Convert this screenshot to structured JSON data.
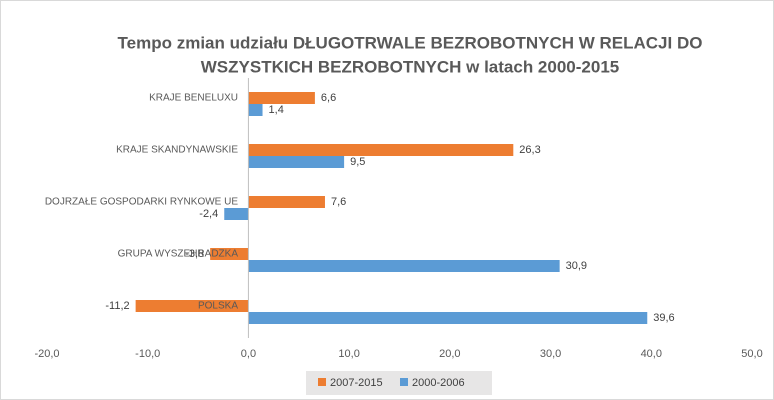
{
  "chart_data": {
    "type": "hbar",
    "title": [
      "Tempo zmian udziału DŁUGOTRWALE BEZROBOTNYCH W RELACJI DO",
      "WSZYSTKICH BEZROBOTNYCH w latach 2000-2015"
    ],
    "categories": [
      "KRAJE BENELUXU",
      "KRAJE SKANDYNAWSKIE",
      "DOJRZAŁE GOSPODARKI RYNKOWE UE",
      "GRUPA WYSZEHRADZKA",
      "POLSKA"
    ],
    "series": [
      {
        "name": "2007-2015",
        "color": "#ed7d31",
        "values": [
          6.6,
          26.3,
          7.6,
          -3.8,
          -11.2
        ],
        "value_labels": [
          "6,6",
          "26,3",
          "7,6",
          "-3,8",
          "-11,2"
        ]
      },
      {
        "name": "2000-2006",
        "color": "#5b9bd5",
        "values": [
          1.4,
          9.5,
          -2.4,
          30.9,
          39.6
        ],
        "value_labels": [
          "1,4",
          "9,5",
          "-2,4",
          "30,9",
          "39,6"
        ]
      }
    ],
    "xlim": [
      -20,
      50
    ],
    "xticks": [
      {
        "value": -20,
        "label": "-20,0"
      },
      {
        "value": -10,
        "label": "-10,0"
      },
      {
        "value": 0,
        "label": "0,0"
      },
      {
        "value": 10,
        "label": "10,0"
      },
      {
        "value": 20,
        "label": "20,0"
      },
      {
        "value": 30,
        "label": "30,0"
      },
      {
        "value": 40,
        "label": "40,0"
      },
      {
        "value": 50,
        "label": "50,0"
      }
    ],
    "legend": "bottom"
  }
}
